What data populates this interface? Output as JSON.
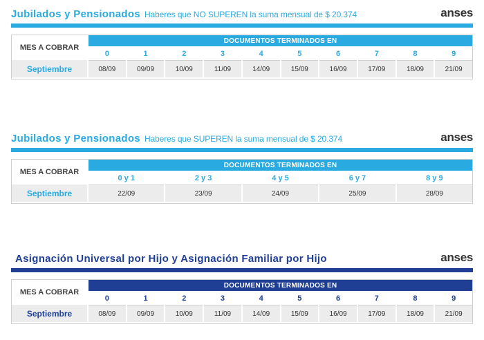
{
  "colors": {
    "cyan": "#29aae1",
    "navy": "#1f3f95"
  },
  "sections": [
    {
      "title_bold": "Jubilados y Pensionados",
      "title_sub": "Haberes que NO SUPEREN la suma mensual de $ 20.374",
      "logo": "anses",
      "mes_label": "MES A COBRAR",
      "mes_value": "Septiembre",
      "doc_header": "DOCUMENTOS TERMINADOS EN",
      "digits": [
        "0",
        "1",
        "2",
        "3",
        "4",
        "5",
        "6",
        "7",
        "8",
        "9"
      ],
      "dates": [
        "08/09",
        "09/09",
        "10/09",
        "11/09",
        "14/09",
        "15/09",
        "16/09",
        "17/09",
        "18/09",
        "21/09"
      ]
    },
    {
      "title_bold": "Jubilados y Pensionados",
      "title_sub": "Haberes que SUPEREN la suma mensual de $ 20.374",
      "logo": "anses",
      "mes_label": "MES A COBRAR",
      "mes_value": "Septiembre",
      "doc_header": "DOCUMENTOS TERMINADOS EN",
      "digits": [
        "0 y 1",
        "2 y 3",
        "4 y 5",
        "6 y 7",
        "8 y 9"
      ],
      "dates": [
        "22/09",
        "23/09",
        "24/09",
        "25/09",
        "28/09"
      ]
    },
    {
      "title_bold": "Asignación Universal por Hijo y Asignación Familiar por Hijo",
      "title_sub": "",
      "logo": "anses",
      "mes_label": "MES A COBRAR",
      "mes_value": "Septiembre",
      "doc_header": "DOCUMENTOS TERMINADOS EN",
      "digits": [
        "0",
        "1",
        "2",
        "3",
        "4",
        "5",
        "6",
        "7",
        "8",
        "9"
      ],
      "dates": [
        "08/09",
        "09/09",
        "10/09",
        "11/09",
        "14/09",
        "15/09",
        "16/09",
        "17/09",
        "18/09",
        "21/09"
      ]
    }
  ]
}
